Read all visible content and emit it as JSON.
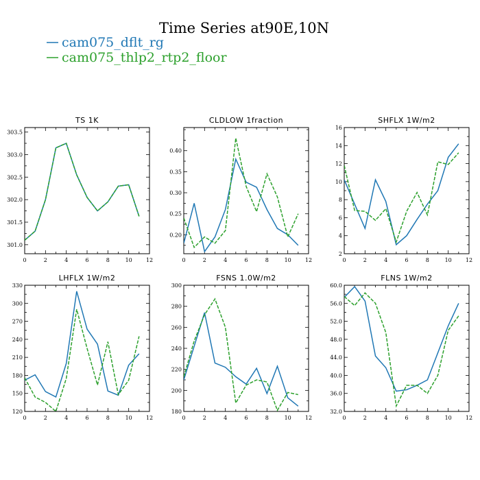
{
  "title": "Time Series at90E,10N",
  "legend": [
    {
      "label": "cam075_dflt_rg",
      "color": "#1f77b4"
    },
    {
      "label": "cam075_thlp2_rtp2_floor",
      "color": "#2ca02c"
    }
  ],
  "chart_data": [
    {
      "type": "line",
      "title": "TS   1K",
      "x": [
        0,
        1,
        2,
        3,
        4,
        5,
        6,
        7,
        8,
        9,
        10,
        11
      ],
      "xlim": [
        0,
        12
      ],
      "xticks": [
        0,
        2,
        4,
        6,
        8,
        10,
        12
      ],
      "ylim": [
        300.8,
        303.6
      ],
      "yticks": [
        301.0,
        301.5,
        302.0,
        302.5,
        303.0,
        303.5
      ],
      "ytick_labels": [
        "301.0",
        "301.5",
        "302.0",
        "302.5",
        "303.0",
        "303.5"
      ],
      "series": [
        {
          "name": "cam075_dflt_rg",
          "values": [
            301.1,
            301.3,
            302.0,
            303.15,
            303.25,
            302.55,
            302.05,
            301.75,
            301.95,
            302.3,
            302.33,
            301.63
          ]
        },
        {
          "name": "cam075_thlp2_rtp2_floor",
          "values": [
            301.1,
            301.3,
            302.0,
            303.15,
            303.25,
            302.55,
            302.05,
            301.75,
            301.95,
            302.3,
            302.33,
            301.63
          ]
        }
      ]
    },
    {
      "type": "line",
      "title": "CLDLOW   1fraction",
      "x": [
        0,
        1,
        2,
        3,
        4,
        5,
        6,
        7,
        8,
        9,
        10,
        11
      ],
      "xlim": [
        0,
        12
      ],
      "xticks": [
        0,
        2,
        4,
        6,
        8,
        10,
        12
      ],
      "ylim": [
        0.155,
        0.455
      ],
      "yticks": [
        0.2,
        0.25,
        0.3,
        0.35,
        0.4
      ],
      "ytick_labels": [
        "0.20",
        "0.25",
        "0.30",
        "0.35",
        "0.40"
      ],
      "series": [
        {
          "name": "cam075_dflt_rg",
          "values": [
            0.18,
            0.275,
            0.16,
            0.195,
            0.26,
            0.38,
            0.325,
            0.313,
            0.26,
            0.215,
            0.2,
            0.175
          ]
        },
        {
          "name": "cam075_thlp2_rtp2_floor",
          "values": [
            0.24,
            0.17,
            0.195,
            0.18,
            0.21,
            0.43,
            0.315,
            0.255,
            0.345,
            0.29,
            0.195,
            0.25
          ]
        }
      ]
    },
    {
      "type": "line",
      "title": "SHFLX   1W/m2",
      "x": [
        0,
        1,
        2,
        3,
        4,
        5,
        6,
        7,
        8,
        9,
        10,
        11
      ],
      "xlim": [
        0,
        12
      ],
      "xticks": [
        0,
        2,
        4,
        6,
        8,
        10,
        12
      ],
      "ylim": [
        2,
        16
      ],
      "yticks": [
        2,
        4,
        6,
        8,
        10,
        12,
        14,
        16
      ],
      "ytick_labels": [
        "2",
        "4",
        "6",
        "8",
        "10",
        "12",
        "14",
        "16"
      ],
      "series": [
        {
          "name": "cam075_dflt_rg",
          "values": [
            10.2,
            7.5,
            4.8,
            10.2,
            7.8,
            3.0,
            4.0,
            5.8,
            7.5,
            9.0,
            12.7,
            14.2
          ]
        },
        {
          "name": "cam075_thlp2_rtp2_floor",
          "values": [
            11.8,
            6.8,
            6.7,
            5.7,
            7.0,
            3.3,
            6.7,
            8.8,
            6.3,
            12.2,
            11.9,
            13.2
          ]
        }
      ]
    },
    {
      "type": "line",
      "title": "LHFLX   1W/m2",
      "x": [
        0,
        1,
        2,
        3,
        4,
        5,
        6,
        7,
        8,
        9,
        10,
        11
      ],
      "xlim": [
        0,
        12
      ],
      "xticks": [
        0,
        2,
        4,
        6,
        8,
        10,
        12
      ],
      "ylim": [
        120,
        330
      ],
      "yticks": [
        120,
        150,
        180,
        210,
        240,
        270,
        300,
        330
      ],
      "ytick_labels": [
        "120",
        "150",
        "180",
        "210",
        "240",
        "270",
        "300",
        "330"
      ],
      "series": [
        {
          "name": "cam075_dflt_rg",
          "values": [
            172,
            181,
            153,
            144,
            200,
            320,
            257,
            232,
            154,
            147,
            197,
            216
          ]
        },
        {
          "name": "cam075_thlp2_rtp2_floor",
          "values": [
            176,
            144,
            135,
            120,
            175,
            290,
            225,
            164,
            236,
            148,
            172,
            245
          ]
        }
      ]
    },
    {
      "type": "line",
      "title": "FSNS   1.0W/m2",
      "x": [
        0,
        1,
        2,
        3,
        4,
        5,
        6,
        7,
        8,
        9,
        10,
        11
      ],
      "xlim": [
        0,
        12
      ],
      "xticks": [
        0,
        2,
        4,
        6,
        8,
        10,
        12
      ],
      "ylim": [
        180,
        300
      ],
      "yticks": [
        180,
        200,
        220,
        240,
        260,
        280,
        300
      ],
      "ytick_labels": [
        "180",
        "200",
        "220",
        "240",
        "260",
        "280",
        "300"
      ],
      "series": [
        {
          "name": "cam075_dflt_rg",
          "values": [
            210,
            242,
            274,
            226,
            222,
            213,
            206,
            221,
            197,
            223,
            193,
            185
          ]
        },
        {
          "name": "cam075_thlp2_rtp2_floor",
          "values": [
            213,
            247,
            272,
            287,
            260,
            188,
            205,
            210,
            208,
            181,
            198,
            196
          ]
        }
      ]
    },
    {
      "type": "line",
      "title": "FLNS   1W/m2",
      "x": [
        0,
        1,
        2,
        3,
        4,
        5,
        6,
        7,
        8,
        9,
        10,
        11
      ],
      "xlim": [
        0,
        12
      ],
      "xticks": [
        0,
        2,
        4,
        6,
        8,
        10,
        12
      ],
      "ylim": [
        32,
        60
      ],
      "yticks": [
        32,
        36,
        40,
        44,
        48,
        52,
        56,
        60
      ],
      "ytick_labels": [
        "32.0",
        "36.0",
        "40.0",
        "44.0",
        "48.0",
        "52.0",
        "56.0",
        "60.0"
      ],
      "series": [
        {
          "name": "cam075_dflt_rg",
          "values": [
            57.3,
            59.7,
            56.5,
            44.3,
            41.7,
            36.5,
            36.8,
            37.8,
            39.0,
            45.0,
            51.0,
            56.0
          ]
        },
        {
          "name": "cam075_thlp2_rtp2_floor",
          "values": [
            57.5,
            55.5,
            58.3,
            56.0,
            49.5,
            33.2,
            37.8,
            37.8,
            36.0,
            40.0,
            50.0,
            53.2
          ]
        }
      ]
    }
  ]
}
